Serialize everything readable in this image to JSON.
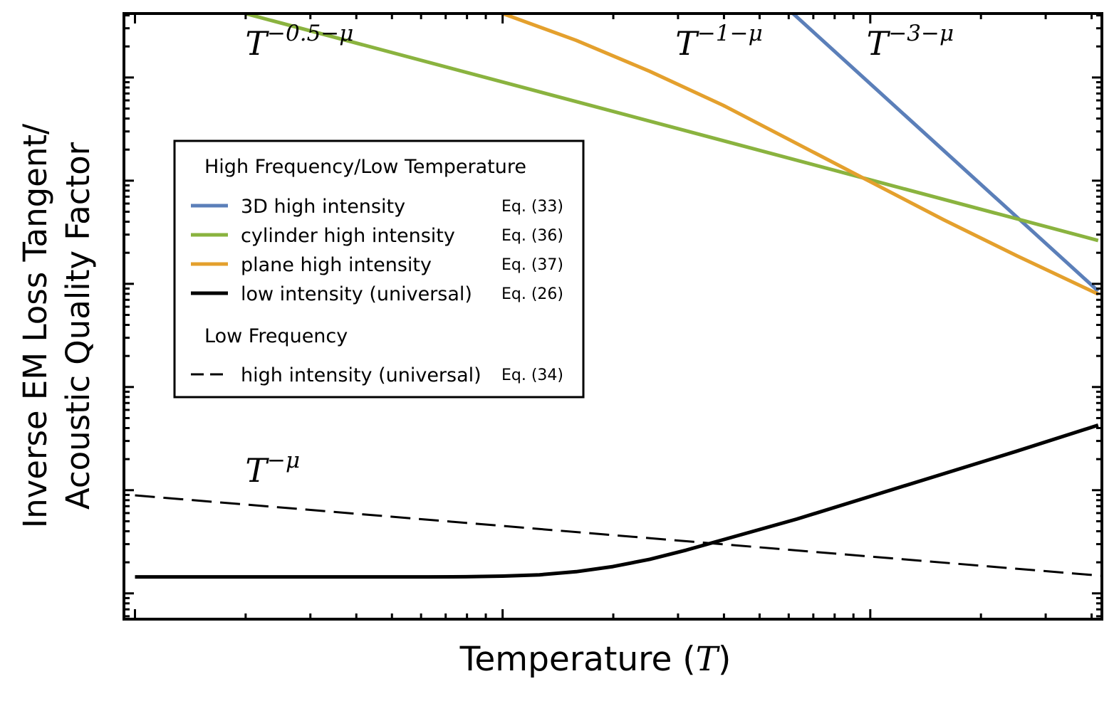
{
  "chart_data": {
    "type": "line",
    "title": "",
    "xlabel_prefix": "Temperature (",
    "xlabel_var": "T",
    "xlabel_suffix": ")",
    "ylabel_line1": "Inverse EM Loss Tangent/",
    "ylabel_line2": "Acoustic Quality Factor",
    "xscale": "log",
    "yscale": "log",
    "xlim": [
      -0.03,
      2.63
    ],
    "ylim": [
      -0.25,
      5.62
    ],
    "major_xticks": [
      0,
      1,
      2
    ],
    "major_yticks": [
      0,
      1,
      2,
      3,
      4,
      5
    ],
    "tick_labels_shown": false,
    "grid": false,
    "series": [
      {
        "name": "3D high intensity",
        "eq": "Eq. (33)",
        "color": "#5b7fb9",
        "dash": "solid",
        "x": [
          1.79,
          2.62
        ],
        "y": [
          5.62,
          2.93
        ]
      },
      {
        "name": "cylinder high intensity",
        "eq": "Eq. (36)",
        "color": "#8ab33f",
        "dash": "solid",
        "x": [
          0.3,
          2.62
        ],
        "y": [
          5.62,
          3.42
        ]
      },
      {
        "name": "plane high intensity",
        "eq": "Eq. (37)",
        "color": "#e4a02d",
        "dash": "solid",
        "x": [
          1.0,
          1.2,
          1.4,
          1.6,
          1.8,
          2.0,
          2.2,
          2.4,
          2.62
        ],
        "y": [
          5.62,
          5.36,
          5.06,
          4.73,
          4.36,
          3.99,
          3.62,
          3.27,
          2.9
        ]
      },
      {
        "name": "low intensity (universal)",
        "eq": "Eq. (26)",
        "color": "#000000",
        "dash": "solid",
        "x": [
          0,
          0.2,
          0.4,
          0.6,
          0.8,
          0.9,
          1.0,
          1.1,
          1.2,
          1.3,
          1.4,
          1.5,
          1.6,
          1.7,
          1.8,
          2.0,
          2.2,
          2.4,
          2.62
        ],
        "y": [
          0.16,
          0.16,
          0.16,
          0.16,
          0.16,
          0.161,
          0.167,
          0.18,
          0.21,
          0.26,
          0.33,
          0.42,
          0.52,
          0.62,
          0.72,
          0.94,
          1.16,
          1.38,
          1.63
        ]
      },
      {
        "name": "high intensity (universal)",
        "eq": "Eq. (34)",
        "color": "#000000",
        "dash": "dashed",
        "x": [
          0,
          2.63
        ],
        "y": [
          0.95,
          0.17
        ]
      }
    ],
    "annotations": [
      {
        "base": "T",
        "exp": "−0.5−μ",
        "x": 0.3,
        "y": 5.22
      },
      {
        "base": "T",
        "exp": "−1−μ",
        "x": 1.47,
        "y": 5.22
      },
      {
        "base": "T",
        "exp": "−3−μ",
        "x": 1.99,
        "y": 5.22
      },
      {
        "base": "T",
        "exp": "−μ",
        "x": 0.3,
        "y": 1.08
      }
    ],
    "legend": {
      "placement": "upper-left",
      "group1_title": "High Frequency/Low Temperature",
      "group2_title": "Low Frequency",
      "group1_series": [
        0,
        1,
        2,
        3
      ],
      "group2_series": [
        4
      ]
    }
  }
}
